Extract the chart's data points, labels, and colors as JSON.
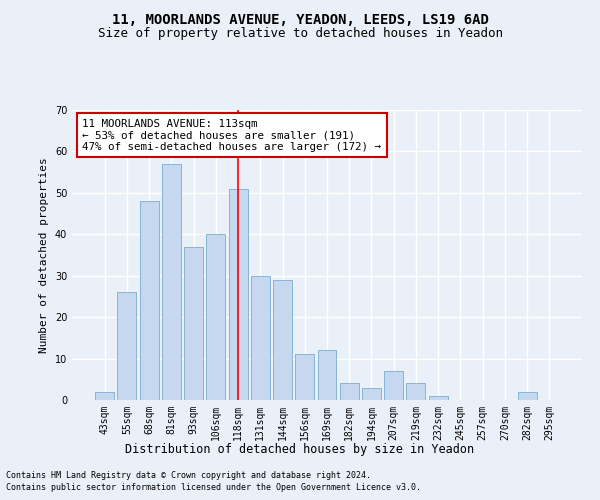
{
  "title1": "11, MOORLANDS AVENUE, YEADON, LEEDS, LS19 6AD",
  "title2": "Size of property relative to detached houses in Yeadon",
  "xlabel": "Distribution of detached houses by size in Yeadon",
  "ylabel": "Number of detached properties",
  "categories": [
    "43sqm",
    "55sqm",
    "68sqm",
    "81sqm",
    "93sqm",
    "106sqm",
    "118sqm",
    "131sqm",
    "144sqm",
    "156sqm",
    "169sqm",
    "182sqm",
    "194sqm",
    "207sqm",
    "219sqm",
    "232sqm",
    "245sqm",
    "257sqm",
    "270sqm",
    "282sqm",
    "295sqm"
  ],
  "values": [
    2,
    26,
    48,
    57,
    37,
    40,
    51,
    30,
    29,
    11,
    12,
    4,
    3,
    7,
    4,
    1,
    0,
    0,
    0,
    2,
    0
  ],
  "bar_color": "#c5d8f0",
  "bar_edge_color": "#7aadd4",
  "red_line_x": 6.0,
  "annotation_text": "11 MOORLANDS AVENUE: 113sqm\n← 53% of detached houses are smaller (191)\n47% of semi-detached houses are larger (172) →",
  "annotation_box_color": "#ffffff",
  "annotation_box_edge": "#cc0000",
  "ylim": [
    0,
    70
  ],
  "yticks": [
    0,
    10,
    20,
    30,
    40,
    50,
    60,
    70
  ],
  "footer1": "Contains HM Land Registry data © Crown copyright and database right 2024.",
  "footer2": "Contains public sector information licensed under the Open Government Licence v3.0.",
  "bg_color": "#eaf0f8",
  "plot_bg_color": "#eaf0f8",
  "grid_color": "#ffffff",
  "title1_fontsize": 10,
  "title2_fontsize": 9,
  "xlabel_fontsize": 8.5,
  "ylabel_fontsize": 8,
  "tick_fontsize": 7,
  "annotation_fontsize": 7.8,
  "footer_fontsize": 6
}
